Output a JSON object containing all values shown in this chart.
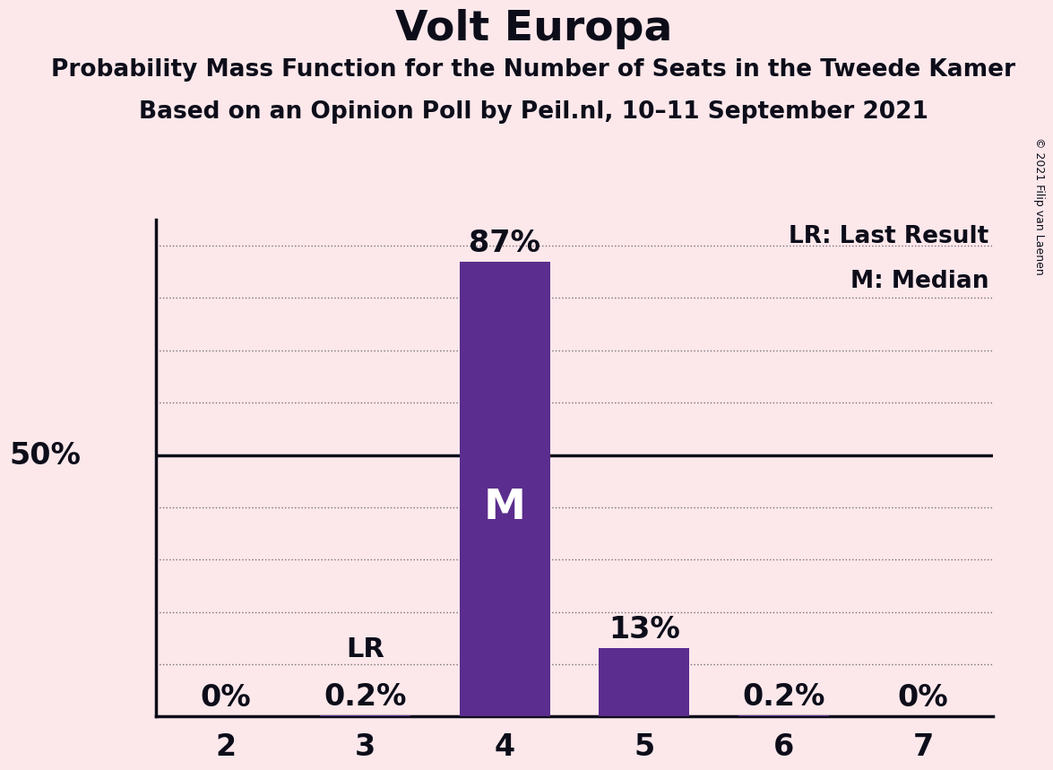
{
  "title": "Volt Europa",
  "subtitle1": "Probability Mass Function for the Number of Seats in the Tweede Kamer",
  "subtitle2": "Based on an Opinion Poll by Peil.nl, 10–11 September 2021",
  "copyright": "© 2021 Filip van Laenen",
  "categories": [
    2,
    3,
    4,
    5,
    6,
    7
  ],
  "values": [
    0.0,
    0.002,
    0.87,
    0.13,
    0.002,
    0.0
  ],
  "bar_color_main": "#5b2d8e",
  "bar_color_light": "#7b52a8",
  "background_color": "#fce8eb",
  "lr_seat": 3,
  "median_seat": 4,
  "ylim": [
    0,
    0.95
  ],
  "xlim": [
    1.5,
    7.5
  ],
  "legend_lr": "LR: Last Result",
  "legend_m": "M: Median",
  "title_fontsize": 34,
  "subtitle_fontsize": 19,
  "bar_label_fontsize": 24,
  "tick_fontsize": 24,
  "legend_fontsize": 19,
  "fifty_pct_fontsize": 24,
  "lr_fontsize": 22,
  "m_fontsize": 34,
  "copyright_fontsize": 9,
  "grid_levels": [
    0.1,
    0.2,
    0.3,
    0.4,
    0.6,
    0.7,
    0.8,
    0.9
  ],
  "fifty_pct": 0.5,
  "text_color": "#0d0d1a",
  "spine_color": "#0d0d1a",
  "grid_color": "#0d0d1a",
  "bar_width": 0.65
}
